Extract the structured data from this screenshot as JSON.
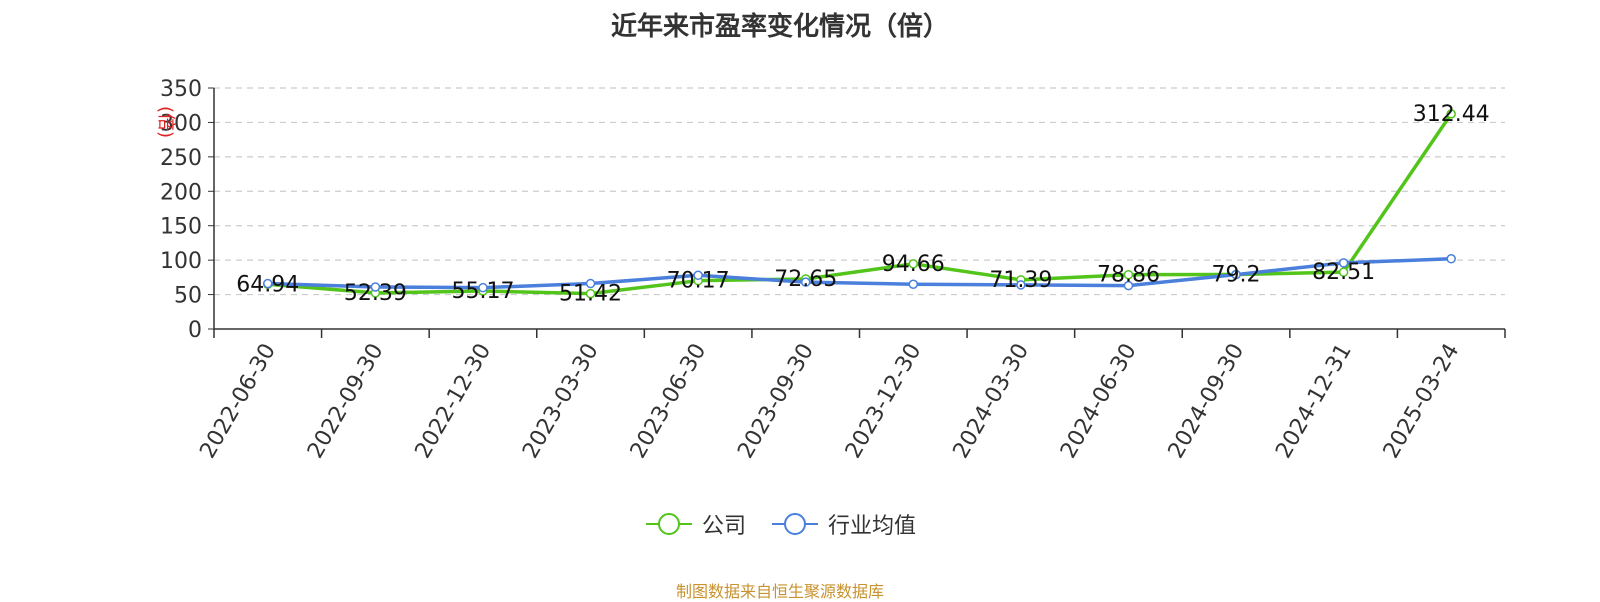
{
  "chart_data": {
    "type": "line",
    "title": "近年来市盈率变化情况（倍）",
    "ylabel": "(倍)",
    "categories": [
      "2022-06-30",
      "2022-09-30",
      "2022-12-30",
      "2023-03-30",
      "2023-06-30",
      "2023-09-30",
      "2023-12-30",
      "2024-03-30",
      "2024-06-30",
      "2024-09-30",
      "2024-12-31",
      "2025-03-24"
    ],
    "series": [
      {
        "name": "公司",
        "color": "#52c41a",
        "values": [
          64.94,
          52.39,
          55.17,
          51.42,
          70.17,
          72.65,
          94.66,
          71.39,
          78.86,
          79.2,
          82.51,
          312.44
        ],
        "labels": [
          "64.94",
          "52.39",
          "55.17",
          "51.42",
          "70.17",
          "72.65",
          "94.66",
          "71.39",
          "78.86",
          "79.2",
          "82.51",
          "312.44"
        ]
      },
      {
        "name": "行业均值",
        "color": "#4a7fdc",
        "values": [
          66,
          61,
          60,
          66,
          78,
          68,
          65,
          64,
          63,
          79,
          96,
          102
        ]
      }
    ],
    "yticks": [
      "0",
      "50",
      "100",
      "150",
      "200",
      "250",
      "300",
      "350"
    ],
    "ylim": [
      0,
      350
    ],
    "grid": true,
    "legend_position": "bottom"
  },
  "source_note": "制图数据来自恒生聚源数据库"
}
